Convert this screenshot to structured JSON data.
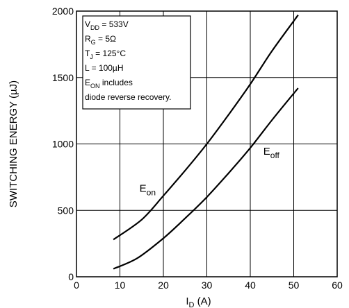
{
  "chart_data": {
    "type": "line",
    "xlabel": "I",
    "xlabel_sub": "D",
    "xlabel_unit": " (A)",
    "ylabel": "SWITCHING ENERGY (µJ)",
    "xlim": [
      0,
      60
    ],
    "ylim": [
      0,
      2000
    ],
    "x_ticks": [
      0,
      10,
      20,
      30,
      40,
      50,
      60
    ],
    "y_ticks": [
      0,
      500,
      1000,
      1500,
      2000
    ],
    "grid": true,
    "series": [
      {
        "label": "E",
        "label_sub": "on",
        "label_at": [
          14.5,
          640
        ],
        "x": [
          8.5,
          15,
          20,
          25,
          30,
          35,
          40,
          45,
          51
        ],
        "y": [
          280,
          430,
          610,
          800,
          1000,
          1220,
          1450,
          1700,
          1970
        ]
      },
      {
        "label": "E",
        "label_sub": "off",
        "label_at": [
          43,
          920
        ],
        "x": [
          8.5,
          14,
          20,
          25,
          30,
          35,
          40,
          45,
          51
        ],
        "y": [
          60,
          140,
          290,
          440,
          600,
          780,
          970,
          1180,
          1420
        ]
      }
    ],
    "conditions": [
      {
        "main": "V",
        "sub": "DD",
        "rest": " = 533V"
      },
      {
        "main": "R",
        "sub": "G",
        "rest": " = 5Ω"
      },
      {
        "main": "T",
        "sub": "J",
        "rest": " = 125°C"
      },
      {
        "main": "L = 100µH",
        "sub": "",
        "rest": ""
      },
      {
        "main": "E",
        "sub": "ON",
        "rest": "  includes"
      },
      {
        "main": "diode reverse recovery.",
        "sub": "",
        "rest": ""
      }
    ]
  }
}
